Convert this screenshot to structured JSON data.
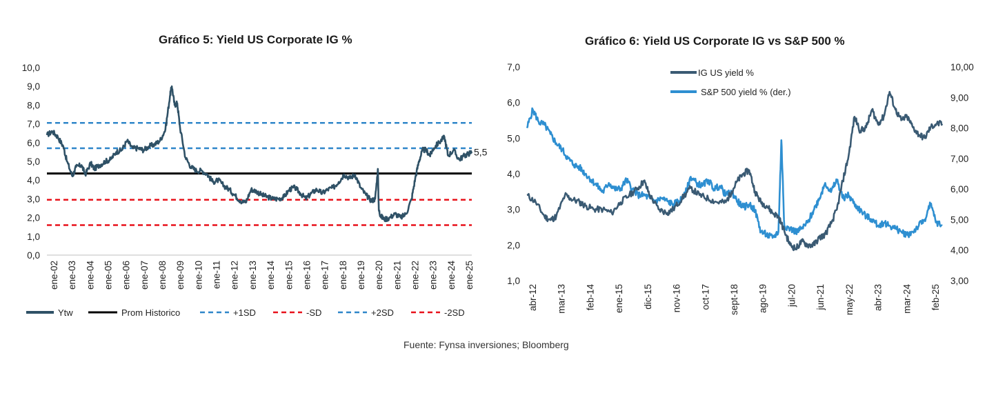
{
  "source": "Fuente: Fynsa inversiones; Bloomberg",
  "colors": {
    "ytw": "#2f5166",
    "ig": "#3a5a73",
    "sp": "#2e8fd1",
    "avg": "#000000",
    "sd1": "#2e86c9",
    "red": "#e8111a"
  },
  "chart_data": [
    {
      "type": "line",
      "title": "Gráfico 5: Yield US Corporate IG %",
      "ylim": [
        0,
        10
      ],
      "yticks": [
        "0,0",
        "1,0",
        "2,0",
        "3,0",
        "4,0",
        "5,0",
        "6,0",
        "7,0",
        "8,0",
        "9,0",
        "10,0"
      ],
      "x_ticks": [
        "ene-02",
        "ene-03",
        "ene-04",
        "ene-05",
        "ene-06",
        "ene-07",
        "ene-08",
        "ene-09",
        "ene-10",
        "ene-11",
        "ene-12",
        "ene-13",
        "ene-14",
        "ene-15",
        "ene-16",
        "ene-17",
        "ene-18",
        "ene-19",
        "ene-20",
        "ene-21",
        "ene-22",
        "ene-23",
        "ene-24",
        "ene-25"
      ],
      "end_label": "5,5",
      "reference_lines": [
        {
          "name": "Prom Historico",
          "value": 4.35,
          "style": "solid",
          "color": "#000000"
        },
        {
          "name": "+1SD",
          "value": 5.7,
          "style": "dashed",
          "color": "#2e86c9"
        },
        {
          "name": "-SD",
          "value": 2.95,
          "style": "dashed",
          "color": "#e8111a"
        },
        {
          "name": "+2SD",
          "value": 7.05,
          "style": "dashed",
          "color": "#2e86c9"
        },
        {
          "name": "-2SD",
          "value": 1.6,
          "style": "dashed",
          "color": "#e8111a"
        }
      ],
      "legend": [
        "Ytw",
        "Prom Historico",
        "+1SD",
        "-SD",
        "+2SD",
        "-2SD"
      ],
      "series": [
        {
          "name": "Ytw",
          "x": [
            2002.0,
            2002.3,
            2002.6,
            2002.9,
            2003.1,
            2003.4,
            2003.6,
            2003.9,
            2004.1,
            2004.4,
            2004.6,
            2004.9,
            2005.2,
            2005.5,
            2005.8,
            2006.1,
            2006.4,
            2006.7,
            2007.0,
            2007.3,
            2007.6,
            2007.9,
            2008.2,
            2008.5,
            2008.75,
            2008.85,
            2009.0,
            2009.15,
            2009.3,
            2009.6,
            2009.9,
            2010.2,
            2010.5,
            2010.8,
            2011.1,
            2011.4,
            2011.7,
            2012.0,
            2012.3,
            2012.6,
            2012.9,
            2013.2,
            2013.5,
            2013.8,
            2014.1,
            2014.4,
            2014.7,
            2015.0,
            2015.3,
            2015.6,
            2015.9,
            2016.2,
            2016.5,
            2016.8,
            2017.1,
            2017.4,
            2017.7,
            2018.0,
            2018.3,
            2018.6,
            2018.9,
            2019.2,
            2019.5,
            2019.8,
            2020.0,
            2020.15,
            2020.2,
            2020.3,
            2020.5,
            2020.8,
            2021.1,
            2021.4,
            2021.7,
            2022.0,
            2022.2,
            2022.4,
            2022.6,
            2022.8,
            2023.0,
            2023.2,
            2023.5,
            2023.8,
            2024.0,
            2024.3,
            2024.6,
            2024.9,
            2025.1,
            2025.3
          ],
          "values": [
            6.4,
            6.6,
            6.3,
            5.8,
            5.0,
            4.2,
            4.7,
            4.8,
            4.3,
            4.9,
            4.6,
            4.8,
            5.0,
            5.1,
            5.5,
            5.6,
            6.1,
            5.7,
            5.7,
            5.6,
            5.8,
            5.9,
            6.1,
            6.7,
            8.5,
            9.0,
            8.0,
            8.1,
            6.8,
            5.2,
            4.7,
            4.5,
            4.5,
            4.3,
            3.9,
            4.0,
            3.7,
            3.5,
            3.2,
            2.9,
            2.8,
            3.5,
            3.4,
            3.2,
            3.1,
            3.0,
            3.0,
            3.1,
            3.5,
            3.6,
            3.3,
            3.0,
            3.3,
            3.5,
            3.3,
            3.5,
            3.6,
            3.9,
            4.3,
            4.1,
            4.3,
            3.6,
            3.2,
            2.9,
            3.0,
            4.6,
            2.4,
            2.1,
            1.9,
            2.0,
            2.2,
            2.0,
            2.2,
            3.0,
            4.1,
            5.0,
            5.6,
            5.6,
            5.3,
            5.7,
            6.0,
            6.3,
            5.3,
            5.6,
            5.1,
            5.3,
            5.4,
            5.5
          ]
        }
      ]
    },
    {
      "type": "line",
      "title": "Gráfico 6: Yield US Corporate IG vs S&P 500 %",
      "ylim_left": [
        1,
        7
      ],
      "ylim_right": [
        3,
        10
      ],
      "yticks_left": [
        "1,0",
        "2,0",
        "3,0",
        "4,0",
        "5,0",
        "6,0",
        "7,0"
      ],
      "yticks_right": [
        "3,00",
        "4,00",
        "5,00",
        "6,00",
        "7,00",
        "8,00",
        "9,00",
        "10,00"
      ],
      "x_ticks": [
        "abr-12",
        "mar-13",
        "feb-14",
        "ene-15",
        "dic-15",
        "nov-16",
        "oct-17",
        "sept-18",
        "ago-19",
        "jul-20",
        "jun-21",
        "may-22",
        "abr-23",
        "mar-24",
        "feb-25"
      ],
      "legend": [
        "IG US yield %",
        "S&P 500 yield % (der.)"
      ],
      "series": [
        {
          "name": "IG US yield %",
          "axis": "left",
          "x": [
            0,
            0.3,
            0.6,
            0.8,
            1.0,
            1.3,
            1.5,
            1.8,
            2.0,
            2.3,
            2.6,
            2.9,
            3.2,
            3.5,
            3.8,
            4.0,
            4.2,
            4.5,
            4.8,
            5.0,
            5.3,
            5.6,
            5.9,
            6.2,
            6.5,
            6.8,
            7.0,
            7.2,
            7.4,
            7.6,
            7.8,
            8.0,
            8.2,
            8.4,
            8.6,
            8.8,
            9.0,
            9.2,
            9.4,
            9.6,
            9.8,
            10.0,
            10.2,
            10.4,
            10.6,
            10.8,
            11.0,
            11.2,
            11.4,
            11.6,
            11.8,
            12.0,
            12.2,
            12.4,
            12.6,
            12.8,
            13.0,
            13.2,
            13.4,
            13.6,
            13.8,
            14.0,
            14.2
          ],
          "values": [
            3.4,
            3.2,
            2.8,
            2.7,
            2.8,
            3.4,
            3.3,
            3.2,
            3.1,
            3.0,
            3.0,
            2.9,
            3.2,
            3.4,
            3.6,
            3.8,
            3.4,
            3.0,
            2.9,
            3.0,
            3.3,
            3.6,
            3.4,
            3.3,
            3.2,
            3.2,
            3.5,
            3.8,
            4.0,
            4.1,
            3.5,
            3.2,
            3.1,
            2.9,
            2.8,
            2.4,
            2.0,
            1.9,
            2.1,
            2.0,
            2.0,
            2.2,
            2.3,
            2.6,
            3.0,
            3.8,
            4.5,
            5.6,
            5.2,
            5.3,
            5.8,
            5.4,
            5.6,
            6.3,
            5.8,
            5.5,
            5.6,
            5.3,
            5.1,
            5.0,
            5.3,
            5.4,
            5.4
          ]
        },
        {
          "name": "S&P 500 yield % (der.)",
          "axis": "right",
          "x": [
            0,
            0.2,
            0.4,
            0.6,
            0.8,
            1.0,
            1.2,
            1.4,
            1.6,
            1.8,
            2.0,
            2.2,
            2.4,
            2.6,
            2.8,
            3.0,
            3.2,
            3.4,
            3.6,
            3.8,
            4.0,
            4.2,
            4.4,
            4.6,
            4.8,
            5.0,
            5.2,
            5.4,
            5.6,
            5.8,
            6.0,
            6.2,
            6.4,
            6.6,
            6.8,
            7.0,
            7.2,
            7.4,
            7.6,
            7.8,
            8.0,
            8.2,
            8.4,
            8.6,
            8.7,
            8.8,
            9.0,
            9.2,
            9.4,
            9.6,
            9.8,
            10.0,
            10.2,
            10.4,
            10.6,
            10.8,
            11.0,
            11.2,
            11.4,
            11.6,
            11.8,
            12.0,
            12.2,
            12.4,
            12.6,
            12.8,
            13.0,
            13.2,
            13.4,
            13.6,
            13.8,
            14.0,
            14.2
          ],
          "values": [
            8.0,
            8.6,
            8.2,
            8.1,
            7.8,
            7.5,
            7.3,
            7.0,
            6.8,
            6.7,
            6.5,
            6.3,
            6.1,
            5.9,
            6.2,
            6.0,
            6.0,
            6.3,
            6.0,
            5.8,
            5.8,
            5.7,
            5.6,
            5.7,
            5.6,
            5.5,
            5.6,
            5.8,
            6.4,
            6.2,
            6.1,
            6.3,
            6.0,
            6.1,
            5.8,
            5.9,
            5.6,
            5.4,
            5.5,
            5.3,
            4.6,
            4.5,
            4.4,
            4.6,
            7.6,
            4.8,
            4.7,
            4.6,
            4.7,
            4.9,
            5.3,
            5.7,
            6.2,
            5.9,
            6.3,
            5.7,
            5.8,
            5.5,
            5.3,
            5.1,
            5.0,
            4.8,
            4.9,
            4.8,
            4.7,
            4.6,
            4.5,
            4.6,
            4.8,
            5.0,
            5.5,
            4.9,
            4.8
          ]
        }
      ]
    }
  ]
}
